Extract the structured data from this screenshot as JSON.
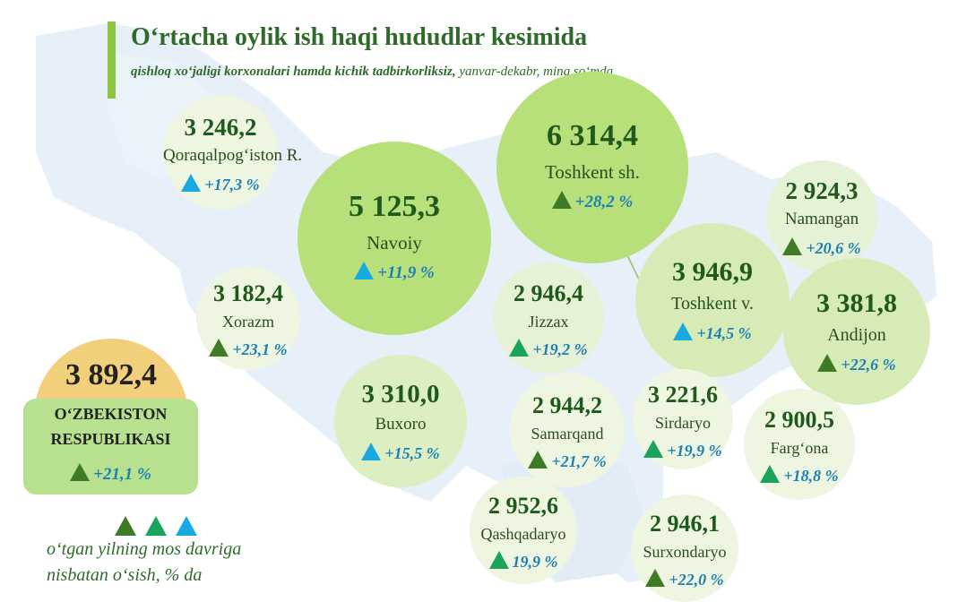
{
  "title": "O‘rtacha oylik ish haqi hududlar kesimida",
  "subtitle": {
    "bold_part": "qishloq xo‘jaligi korxonalari hamda kichik tadbirkorliksiz,",
    "normal_part": " yanvar-dekabr, ming so‘mda"
  },
  "colors": {
    "accent_bar": "#8cc63f",
    "map_fill": "#e7eff8",
    "triangle_dark": "#3f7a26",
    "triangle_mid": "#1aa35a",
    "triangle_light": "#19a9e1",
    "growth_text": "#1a7fb6",
    "republic_box": "#b7e08f",
    "republic_cap": "#f2cf7a"
  },
  "chart_data": {
    "type": "bubble-map",
    "unit": "ming so‘m",
    "regions": [
      {
        "name": "Qoraqalpog‘iston R.",
        "value": "3 246,2",
        "growth": "+17,3 %",
        "arrow": "light"
      },
      {
        "name": "Navoiy",
        "value": "5 125,3",
        "growth": "+11,9 %",
        "arrow": "light"
      },
      {
        "name": "Toshkent sh.",
        "value": "6 314,4",
        "growth": "+28,2 %",
        "arrow": "dark"
      },
      {
        "name": "Namangan",
        "value": "2 924,3",
        "growth": "+20,6 %",
        "arrow": "dark"
      },
      {
        "name": "Xorazm",
        "value": "3 182,4",
        "growth": "+23,1 %",
        "arrow": "dark"
      },
      {
        "name": "Jizzax",
        "value": "2 946,4",
        "growth": "+19,2 %",
        "arrow": "mid"
      },
      {
        "name": "Toshkent v.",
        "value": "3 946,9",
        "growth": "+14,5 %",
        "arrow": "light"
      },
      {
        "name": "Andijon",
        "value": "3 381,8",
        "growth": "+22,6 %",
        "arrow": "dark"
      },
      {
        "name": "Buxoro",
        "value": "3 310,0",
        "growth": "+15,5 %",
        "arrow": "light"
      },
      {
        "name": "Samarqand",
        "value": "2 944,2",
        "growth": "+21,7 %",
        "arrow": "dark"
      },
      {
        "name": "Sirdaryo",
        "value": "3 221,6",
        "growth": "+19,9 %",
        "arrow": "mid"
      },
      {
        "name": "Farg‘ona",
        "value": "2 900,5",
        "growth": "+18,8 %",
        "arrow": "mid"
      },
      {
        "name": "Qashqadaryo",
        "value": "2 952,6",
        "growth": "19,9 %",
        "arrow": "mid"
      },
      {
        "name": "Surxondaryo",
        "value": "2 946,1",
        "growth": "+22,0 %",
        "arrow": "dark"
      }
    ],
    "republic": {
      "name_line1": "O‘ZBEKISTON",
      "name_line2": "RESPUBLIKASI",
      "value": "3 892,4",
      "growth": "+21,1 %",
      "arrow": "dark"
    }
  },
  "legend": {
    "line1": "o‘tgan yilning mos davriga",
    "line2": "nisbatan o‘sish, % da",
    "arrows": [
      "dark",
      "mid",
      "light"
    ]
  }
}
